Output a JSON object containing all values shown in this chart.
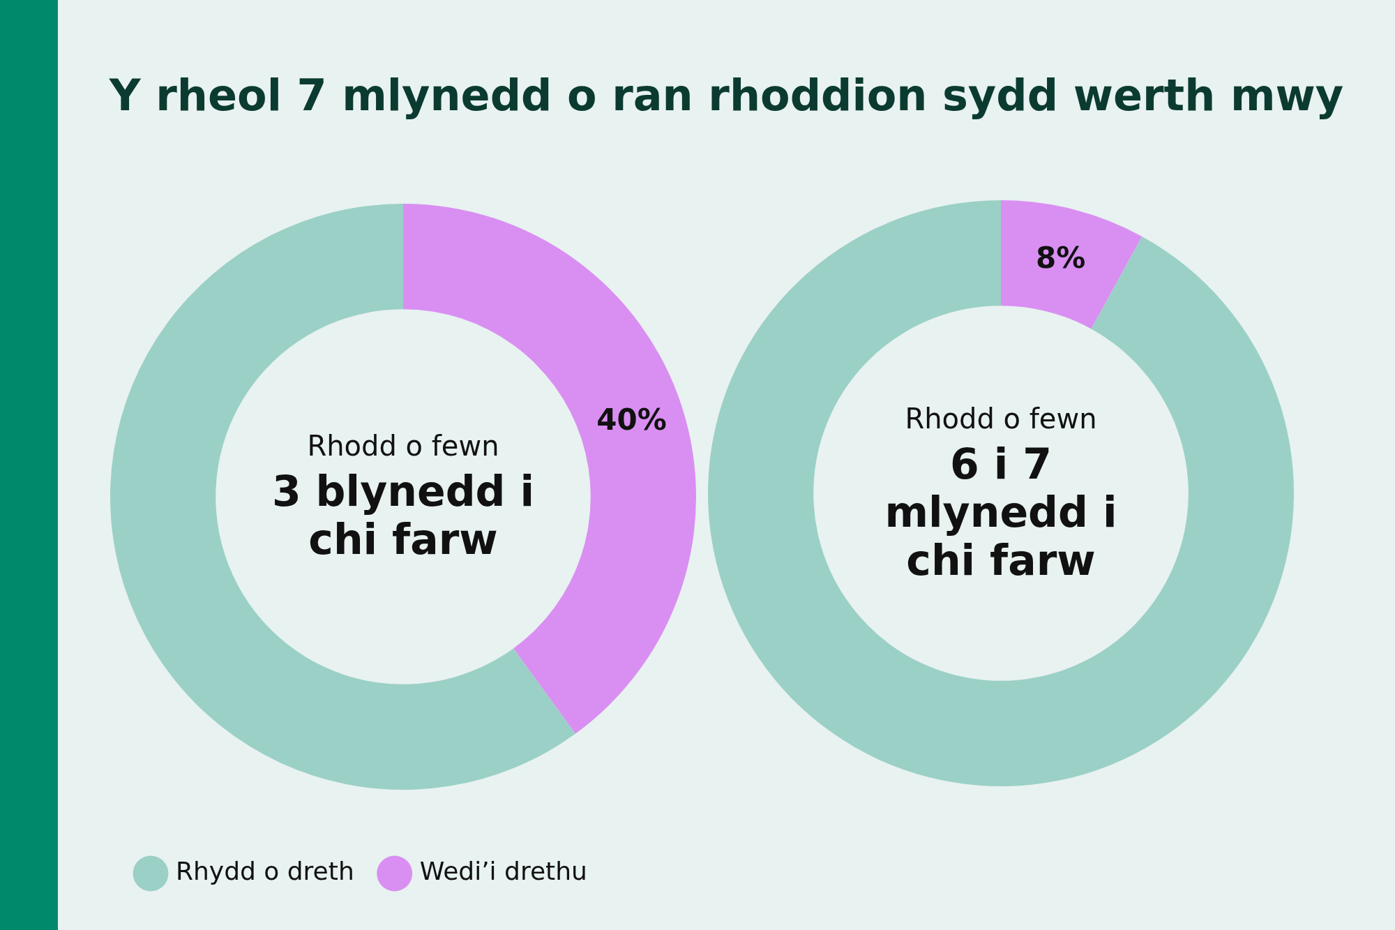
{
  "chart_data": [
    {
      "type": "donut",
      "title": "Y rheol 7 mlynedd o ran rhoddion sydd werth mwy",
      "categories": [
        "Wedi’i drethu",
        "Rhydd o dreth"
      ],
      "values": [
        40,
        60
      ],
      "colors": [
        "#d98ff2",
        "#9bd0c6"
      ],
      "value_labels": [
        "40%",
        null
      ],
      "annotations": [
        "Rhodd o fewn",
        "3 blynedd i chi farw"
      ],
      "legend": "bottom left"
    },
    {
      "type": "donut",
      "categories": [
        null,
        null
      ],
      "values": [
        8,
        92
      ],
      "colors": [
        "#d98ff2",
        "#9bd0c6"
      ],
      "value_labels": [
        "8%",
        null
      ],
      "annotations": [
        "Rhodd o fewn",
        "6 i 7 mlynedd i chi farw"
      ]
    }
  ]
}
